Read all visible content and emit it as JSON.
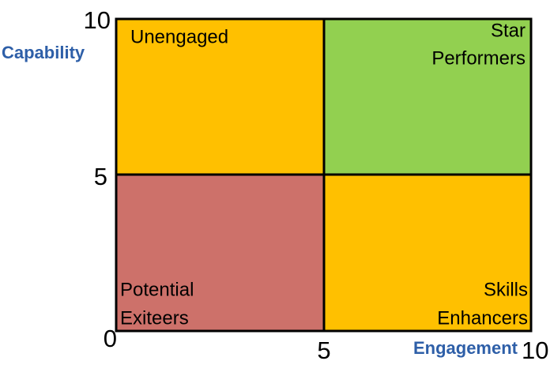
{
  "axes": {
    "y_label": "Capability",
    "x_label": "Engagement",
    "y_ticks": [
      "10",
      "5",
      "0"
    ],
    "x_ticks": [
      "5",
      "10"
    ]
  },
  "quadrants": [
    {
      "lines": [
        "Unengaged"
      ]
    },
    {
      "lines": [
        "Star",
        "Performers"
      ]
    },
    {
      "lines": [
        "Potential",
        "Exiteers"
      ]
    },
    {
      "lines": [
        "Skills",
        "Enhancers"
      ]
    }
  ]
}
